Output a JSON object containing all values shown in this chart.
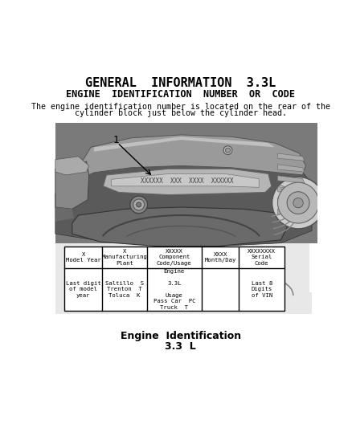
{
  "title": "GENERAL  INFORMATION  3.3L",
  "subtitle": "ENGINE  IDENTIFICATION  NUMBER  OR  CODE",
  "body_line1": "The engine identification number is located on the rear of the",
  "body_line2": "cylinder block just below the cylinder head.",
  "caption1": "Engine  Identification",
  "caption2": "3.3  L",
  "label_number": "1",
  "table": {
    "col_headers": [
      "X\nModel Year",
      "X\nManufacturing\nPlant",
      "XXXXX\nComponent\nCode/Usage",
      "XXXX\nMonth/Day",
      "XXXXXXXX\nSerial\nCode"
    ],
    "col_data": [
      "Last digit\nof model\nyear",
      "Saltillo  S\nTrenton  T\nToluca  K",
      "Engine\n\n3.3L\n\nUsage\nPass Car  PC\nTruck  T",
      "",
      "Last 8\nDigits\nof VIN"
    ]
  },
  "bg_color": "#ffffff",
  "text_color": "#000000"
}
